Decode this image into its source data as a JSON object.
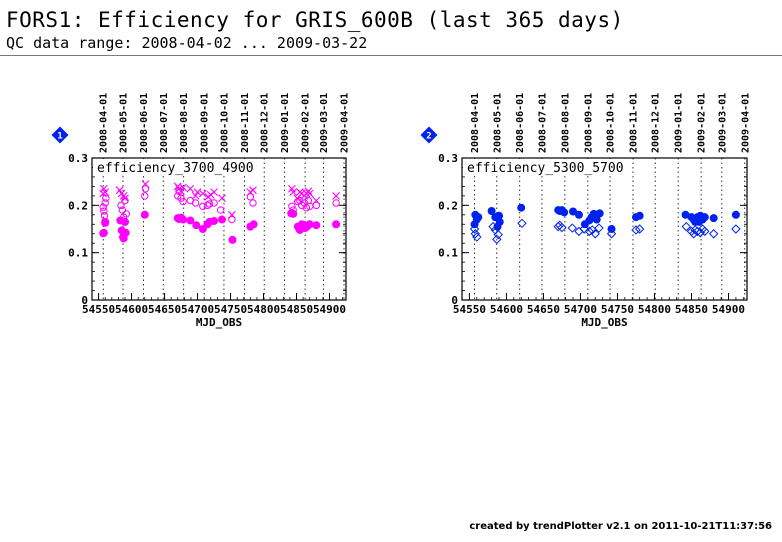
{
  "header": {
    "title": "FORS1: Efficiency for GRIS_600B (last 365 days)",
    "subtitle": "QC data range: 2008-04-02 ... 2009-03-22"
  },
  "footer": {
    "text": "created by trendPlotter v2.1 on 2011-10-21T11:37:56"
  },
  "colors": {
    "panel1": "#ff00ff",
    "panel2": "#0022ee"
  },
  "chart_data": [
    {
      "type": "scatter",
      "panel_marker": "1",
      "title": "efficiency_3700_4900",
      "xlabel": "MJD_OBS",
      "ylabel": "",
      "xlim": [
        54540,
        54925
      ],
      "ylim": [
        0,
        0.3
      ],
      "x_ticks": [
        54550,
        54600,
        54650,
        54700,
        54750,
        54800,
        54850,
        54900
      ],
      "x_tick_labels": [
        "54550",
        "54600",
        "54650",
        "54700",
        "54750",
        "54800",
        "54850",
        "54900"
      ],
      "y_ticks": [
        0,
        0.1,
        0.2,
        0.3
      ],
      "y_tick_labels": [
        "0",
        "0.1",
        "0.2",
        "0.3"
      ],
      "top_axis": {
        "dates": [
          "2008-04-01",
          "2008-05-01",
          "2008-06-01",
          "2008-07-01",
          "2008-08-01",
          "2008-09-01",
          "2008-10-01",
          "2008-11-01",
          "2008-12-01",
          "2009-01-01",
          "2009-02-01",
          "2009-03-01",
          "2009-04-01"
        ],
        "mjd": [
          54557,
          54587,
          54618,
          54648,
          54679,
          54710,
          54740,
          54771,
          54801,
          54832,
          54863,
          54891,
          54922
        ]
      },
      "series": [
        {
          "marker": "filled-circle",
          "color": "#ff00ff",
          "x": [
            54557,
            54558,
            54560,
            54560,
            54583,
            54585,
            54587,
            54588,
            54590,
            54591,
            54620,
            54670,
            54672,
            54675,
            54678,
            54689,
            54698,
            54708,
            54715,
            54718,
            54725,
            54737,
            54753,
            54780,
            54785,
            54842,
            54845,
            54852,
            54855,
            54858,
            54860,
            54863,
            54866,
            54868,
            54870,
            54880,
            54910
          ],
          "y": [
            0.141,
            0.142,
            0.163,
            0.165,
            0.168,
            0.147,
            0.133,
            0.13,
            0.165,
            0.142,
            0.18,
            0.173,
            0.171,
            0.174,
            0.17,
            0.168,
            0.158,
            0.15,
            0.16,
            0.165,
            0.167,
            0.17,
            0.127,
            0.155,
            0.16,
            0.183,
            0.182,
            0.155,
            0.148,
            0.16,
            0.157,
            0.152,
            0.155,
            0.158,
            0.16,
            0.158,
            0.16
          ]
        },
        {
          "marker": "open-circle",
          "color": "#ff00ff",
          "x": [
            54557,
            54558,
            54560,
            54559,
            54561,
            54584,
            54586,
            54588,
            54590,
            54592,
            54620,
            54621,
            54670,
            54672,
            54675,
            54678,
            54689,
            54697,
            54708,
            54715,
            54718,
            54725,
            54735,
            54752,
            54780,
            54784,
            54843,
            54845,
            54852,
            54855,
            54858,
            54862,
            54865,
            54868,
            54870,
            54880,
            54910
          ],
          "y": [
            0.196,
            0.188,
            0.205,
            0.178,
            0.215,
            0.2,
            0.19,
            0.175,
            0.21,
            0.182,
            0.22,
            0.235,
            0.22,
            0.23,
            0.215,
            0.208,
            0.21,
            0.205,
            0.198,
            0.2,
            0.203,
            0.205,
            0.19,
            0.17,
            0.218,
            0.205,
            0.198,
            0.19,
            0.208,
            0.21,
            0.2,
            0.205,
            0.195,
            0.21,
            0.198,
            0.2,
            0.205
          ]
        },
        {
          "marker": "cross",
          "color": "#ff00ff",
          "x": [
            54557,
            54558,
            54560,
            54582,
            54585,
            54588,
            54590,
            54621,
            54670,
            54672,
            54675,
            54678,
            54689,
            54697,
            54700,
            54708,
            54716,
            54720,
            54725,
            54737,
            54752,
            54780,
            54784,
            54843,
            54845,
            54851,
            54855,
            54858,
            54862,
            54865,
            54868,
            54870,
            54880,
            54910
          ],
          "y": [
            0.225,
            0.235,
            0.228,
            0.232,
            0.225,
            0.22,
            0.215,
            0.245,
            0.24,
            0.235,
            0.23,
            0.238,
            0.235,
            0.22,
            0.228,
            0.225,
            0.218,
            0.222,
            0.228,
            0.215,
            0.18,
            0.228,
            0.232,
            0.235,
            0.228,
            0.215,
            0.228,
            0.225,
            0.22,
            0.225,
            0.23,
            0.225,
            0.21,
            0.22
          ]
        }
      ]
    },
    {
      "type": "scatter",
      "panel_marker": "2",
      "title": "efficiency_5300_5700",
      "xlabel": "MJD_OBS",
      "ylabel": "",
      "xlim": [
        54540,
        54925
      ],
      "ylim": [
        0,
        0.3
      ],
      "x_ticks": [
        54550,
        54600,
        54650,
        54700,
        54750,
        54800,
        54850,
        54900
      ],
      "x_tick_labels": [
        "54550",
        "54600",
        "54650",
        "54700",
        "54750",
        "54800",
        "54850",
        "54900"
      ],
      "y_ticks": [
        0,
        0.1,
        0.2,
        0.3
      ],
      "y_tick_labels": [
        "0",
        "0.1",
        "0.2",
        "0.3"
      ],
      "top_axis": {
        "dates": [
          "2008-04-01",
          "2008-05-01",
          "2008-06-01",
          "2008-07-01",
          "2008-08-01",
          "2008-09-01",
          "2008-10-01",
          "2008-11-01",
          "2008-12-01",
          "2009-01-01",
          "2009-02-01",
          "2009-03-01",
          "2009-04-01"
        ],
        "mjd": [
          54557,
          54587,
          54618,
          54648,
          54679,
          54710,
          54740,
          54771,
          54801,
          54832,
          54863,
          54891,
          54922
        ]
      },
      "series": [
        {
          "marker": "filled-circle",
          "color": "#0022ee",
          "x": [
            54557,
            54558,
            54560,
            54562,
            54580,
            54585,
            54588,
            54590,
            54591,
            54620,
            54670,
            54672,
            54675,
            54678,
            54690,
            54698,
            54706,
            54712,
            54715,
            54718,
            54722,
            54726,
            54742,
            54775,
            54780,
            54842,
            54850,
            54853,
            54855,
            54858,
            54860,
            54862,
            54865,
            54868,
            54880,
            54910
          ],
          "y": [
            0.16,
            0.18,
            0.17,
            0.175,
            0.188,
            0.175,
            0.155,
            0.178,
            0.165,
            0.195,
            0.19,
            0.188,
            0.19,
            0.185,
            0.187,
            0.18,
            0.16,
            0.168,
            0.175,
            0.182,
            0.17,
            0.183,
            0.15,
            0.175,
            0.178,
            0.18,
            0.175,
            0.17,
            0.165,
            0.175,
            0.165,
            0.178,
            0.17,
            0.175,
            0.173,
            0.18
          ]
        },
        {
          "marker": "open-diamond",
          "color": "#0022ee",
          "x": [
            54557,
            54558,
            54560,
            54582,
            54585,
            54587,
            54589,
            54621,
            54670,
            54672,
            54675,
            54689,
            54698,
            54705,
            54712,
            54716,
            54720,
            54725,
            54742,
            54775,
            54780,
            54843,
            54850,
            54853,
            54855,
            54858,
            54862,
            54865,
            54868,
            54880,
            54910
          ],
          "y": [
            0.15,
            0.14,
            0.133,
            0.155,
            0.148,
            0.128,
            0.138,
            0.162,
            0.155,
            0.158,
            0.153,
            0.152,
            0.145,
            0.15,
            0.145,
            0.148,
            0.14,
            0.152,
            0.14,
            0.148,
            0.15,
            0.155,
            0.145,
            0.14,
            0.148,
            0.145,
            0.142,
            0.15,
            0.145,
            0.14,
            0.15
          ]
        }
      ]
    }
  ]
}
